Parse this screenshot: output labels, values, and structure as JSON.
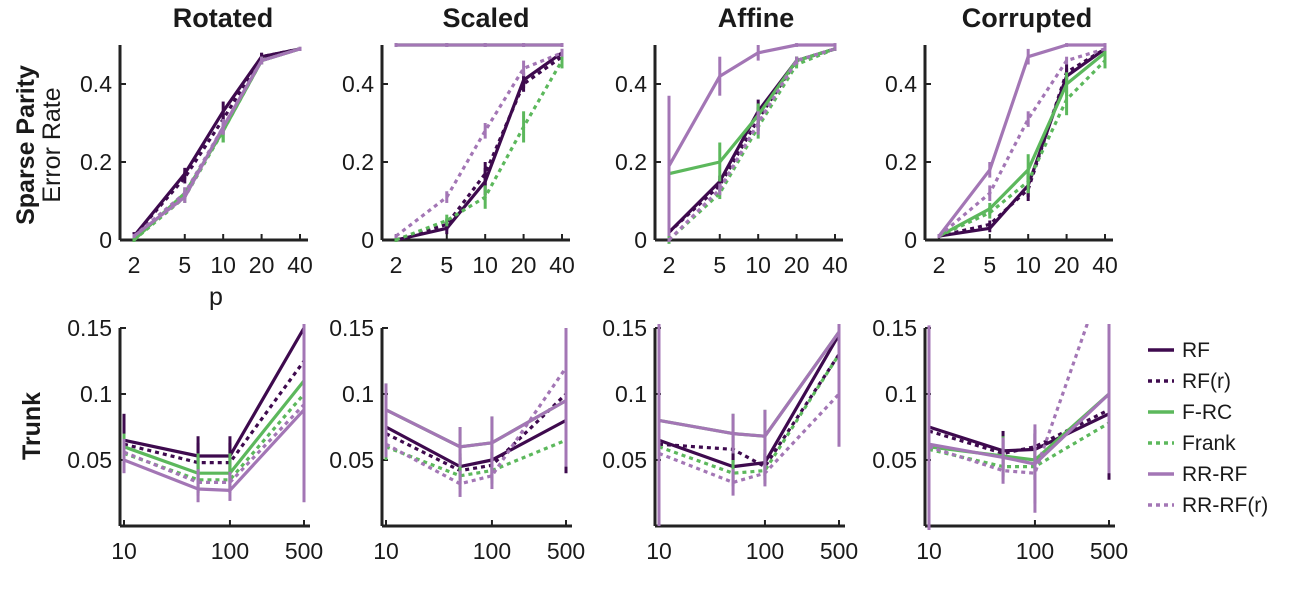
{
  "colors": {
    "RF": "#3e0a4e",
    "F-RC": "#5cb85c",
    "RR-RF": "#a376b5"
  },
  "legend": [
    {
      "name": "RF",
      "color": "RF",
      "dashed": false
    },
    {
      "name": "RF(r)",
      "color": "RF",
      "dashed": true
    },
    {
      "name": "F-RC",
      "color": "F-RC",
      "dashed": false
    },
    {
      "name": "Frank",
      "color": "F-RC",
      "dashed": true
    },
    {
      "name": "RR-RF",
      "color": "RR-RF",
      "dashed": false
    },
    {
      "name": "RR-RF(r)",
      "color": "RR-RF",
      "dashed": true
    }
  ],
  "column_titles": [
    "Rotated",
    "Scaled",
    "Affine",
    "Corrupted"
  ],
  "row_labels": {
    "sparse": "Sparse Parity",
    "trunk": "Trunk"
  },
  "ylabel_top": "Error Rate",
  "xlabel_top": "p",
  "chart_data": [
    {
      "type": "line",
      "row": "sparse",
      "panel": "Rotated",
      "xscale": "log",
      "x": [
        2,
        5,
        10,
        20,
        40
      ],
      "xticks": [
        2,
        5,
        10,
        20,
        40
      ],
      "ylim": [
        0,
        0.5
      ],
      "yticks": [
        0,
        0.2,
        0.4
      ],
      "ytick_labels": [
        "0",
        "0.2",
        "0.4"
      ],
      "series": [
        {
          "name": "RF",
          "dashed": false,
          "y": [
            0.01,
            0.17,
            0.33,
            0.47,
            0.49
          ],
          "err": [
            0.01,
            0.015,
            0.025,
            0.01,
            0.005
          ]
        },
        {
          "name": "RF(r)",
          "dashed": true,
          "y": [
            0.01,
            0.16,
            0.31,
            0.47,
            0.49
          ],
          "err": [
            0.01,
            0.015,
            0.02,
            0.01,
            0.005
          ]
        },
        {
          "name": "F-RC",
          "dashed": false,
          "y": [
            0.0,
            0.12,
            0.28,
            0.46,
            0.49
          ],
          "err": [
            0.005,
            0.015,
            0.03,
            0.01,
            0.005
          ]
        },
        {
          "name": "Frank",
          "dashed": true,
          "y": [
            0.0,
            0.11,
            0.28,
            0.46,
            0.49
          ],
          "err": [
            0.005,
            0.015,
            0.03,
            0.01,
            0.005
          ]
        },
        {
          "name": "RR-RF",
          "dashed": false,
          "y": [
            0.01,
            0.11,
            0.29,
            0.46,
            0.49
          ],
          "err": [
            0.005,
            0.015,
            0.02,
            0.01,
            0.005
          ]
        },
        {
          "name": "RR-RF(r)",
          "dashed": true,
          "y": [
            0.01,
            0.12,
            0.29,
            0.46,
            0.49
          ],
          "err": [
            0.005,
            0.015,
            0.02,
            0.01,
            0.005
          ]
        }
      ]
    },
    {
      "type": "line",
      "row": "sparse",
      "panel": "Scaled",
      "xscale": "log",
      "x": [
        2,
        5,
        10,
        20,
        40
      ],
      "xticks": [
        2,
        5,
        10,
        20,
        40
      ],
      "ylim": [
        0,
        0.5
      ],
      "yticks": [
        0,
        0.2,
        0.4
      ],
      "ytick_labels": [
        "0",
        "0.2",
        "0.4"
      ],
      "series": [
        {
          "name": "RF",
          "dashed": false,
          "y": [
            0.0,
            0.03,
            0.15,
            0.41,
            0.48
          ],
          "err": [
            0.005,
            0.015,
            0.035,
            0.02,
            0.01
          ]
        },
        {
          "name": "RF(r)",
          "dashed": true,
          "y": [
            0.0,
            0.04,
            0.17,
            0.4,
            0.47
          ],
          "err": [
            0.005,
            0.015,
            0.03,
            0.02,
            0.01
          ]
        },
        {
          "name": "F-RC",
          "dashed": false,
          "y": [
            0.5,
            0.5,
            0.5,
            0.5,
            0.5
          ],
          "err": [
            0.005,
            0.005,
            0.005,
            0.005,
            0.005
          ]
        },
        {
          "name": "Frank",
          "dashed": true,
          "y": [
            0.0,
            0.05,
            0.11,
            0.29,
            0.46
          ],
          "err": [
            0.005,
            0.015,
            0.03,
            0.04,
            0.02
          ]
        },
        {
          "name": "RR-RF",
          "dashed": false,
          "y": [
            0.5,
            0.5,
            0.5,
            0.5,
            0.5
          ],
          "err": [
            0.005,
            0.005,
            0.005,
            0.005,
            0.005
          ]
        },
        {
          "name": "RR-RF(r)",
          "dashed": true,
          "y": [
            0.01,
            0.11,
            0.28,
            0.44,
            0.48
          ],
          "err": [
            0.005,
            0.015,
            0.02,
            0.02,
            0.01
          ]
        }
      ]
    },
    {
      "type": "line",
      "row": "sparse",
      "panel": "Affine",
      "xscale": "log",
      "x": [
        2,
        5,
        10,
        20,
        40
      ],
      "xticks": [
        2,
        5,
        10,
        20,
        40
      ],
      "ylim": [
        0,
        0.5
      ],
      "yticks": [
        0,
        0.2,
        0.4
      ],
      "ytick_labels": [
        "0",
        "0.2",
        "0.4"
      ],
      "series": [
        {
          "name": "RF",
          "dashed": false,
          "y": [
            0.02,
            0.15,
            0.33,
            0.46,
            0.49
          ],
          "err": [
            0.01,
            0.015,
            0.03,
            0.01,
            0.005
          ]
        },
        {
          "name": "RF(r)",
          "dashed": true,
          "y": [
            0.02,
            0.14,
            0.31,
            0.46,
            0.49
          ],
          "err": [
            0.01,
            0.015,
            0.03,
            0.01,
            0.005
          ]
        },
        {
          "name": "F-RC",
          "dashed": false,
          "y": [
            0.17,
            0.2,
            0.32,
            0.46,
            0.49
          ],
          "err": [
            0.18,
            0.05,
            0.03,
            0.01,
            0.005
          ]
        },
        {
          "name": "Frank",
          "dashed": true,
          "y": [
            0.0,
            0.12,
            0.29,
            0.45,
            0.49
          ],
          "err": [
            0.005,
            0.015,
            0.03,
            0.01,
            0.005
          ]
        },
        {
          "name": "RR-RF",
          "dashed": false,
          "y": [
            0.19,
            0.42,
            0.48,
            0.5,
            0.5
          ],
          "err": [
            0.18,
            0.05,
            0.02,
            0.005,
            0.005
          ]
        },
        {
          "name": "RR-RF(r)",
          "dashed": true,
          "y": [
            0.0,
            0.13,
            0.3,
            0.46,
            0.49
          ],
          "err": [
            0.005,
            0.015,
            0.03,
            0.01,
            0.005
          ]
        }
      ]
    },
    {
      "type": "line",
      "row": "sparse",
      "panel": "Corrupted",
      "xscale": "log",
      "x": [
        2,
        5,
        10,
        20,
        40
      ],
      "xticks": [
        2,
        5,
        10,
        20,
        40
      ],
      "ylim": [
        0,
        0.5
      ],
      "yticks": [
        0,
        0.2,
        0.4
      ],
      "ytick_labels": [
        "0",
        "0.2",
        "0.4"
      ],
      "series": [
        {
          "name": "RF",
          "dashed": false,
          "y": [
            0.01,
            0.03,
            0.14,
            0.42,
            0.49
          ],
          "err": [
            0.005,
            0.01,
            0.03,
            0.02,
            0.01
          ]
        },
        {
          "name": "RF(r)",
          "dashed": true,
          "y": [
            0.01,
            0.04,
            0.13,
            0.43,
            0.49
          ],
          "err": [
            0.005,
            0.01,
            0.03,
            0.02,
            0.01
          ]
        },
        {
          "name": "F-RC",
          "dashed": false,
          "y": [
            0.01,
            0.08,
            0.18,
            0.4,
            0.48
          ],
          "err": [
            0.005,
            0.015,
            0.04,
            0.03,
            0.01
          ]
        },
        {
          "name": "Frank",
          "dashed": true,
          "y": [
            0.01,
            0.07,
            0.15,
            0.36,
            0.46
          ],
          "err": [
            0.005,
            0.015,
            0.03,
            0.04,
            0.02
          ]
        },
        {
          "name": "RR-RF",
          "dashed": false,
          "y": [
            0.01,
            0.18,
            0.47,
            0.5,
            0.5
          ],
          "err": [
            0.005,
            0.02,
            0.02,
            0.005,
            0.005
          ]
        },
        {
          "name": "RR-RF(r)",
          "dashed": true,
          "y": [
            0.01,
            0.12,
            0.31,
            0.46,
            0.49
          ],
          "err": [
            0.005,
            0.02,
            0.02,
            0.01,
            0.005
          ]
        }
      ]
    },
    {
      "type": "line",
      "row": "trunk",
      "panel": "Rotated",
      "xscale": "log",
      "x": [
        10,
        50,
        100,
        500
      ],
      "xticks": [
        10,
        100,
        500
      ],
      "ylim": [
        0,
        0.15
      ],
      "yticks": [
        0.05,
        0.1,
        0.15
      ],
      "ytick_labels": [
        "0.05",
        "0.1",
        "0.15"
      ],
      "series": [
        {
          "name": "RF",
          "dashed": false,
          "y": [
            0.065,
            0.053,
            0.053,
            0.15
          ],
          "err": [
            0.02,
            0.015,
            0.015,
            0.01
          ]
        },
        {
          "name": "RF(r)",
          "dashed": true,
          "y": [
            0.062,
            0.048,
            0.048,
            0.125
          ],
          "err": [
            0.015,
            0.015,
            0.015,
            0.01
          ]
        },
        {
          "name": "F-RC",
          "dashed": false,
          "y": [
            0.06,
            0.04,
            0.04,
            0.11
          ],
          "err": [
            0.01,
            0.015,
            0.015,
            0.04
          ]
        },
        {
          "name": "Frank",
          "dashed": true,
          "y": [
            0.055,
            0.035,
            0.035,
            0.1
          ],
          "err": [
            0.01,
            0.01,
            0.01,
            0.03
          ]
        },
        {
          "name": "RR-RF",
          "dashed": false,
          "y": [
            0.05,
            0.028,
            0.027,
            0.088
          ],
          "err": [
            0.01,
            0.01,
            0.008,
            0.07
          ]
        },
        {
          "name": "RR-RF(r)",
          "dashed": true,
          "y": [
            0.056,
            0.033,
            0.033,
            0.092
          ],
          "err": [
            0.01,
            0.01,
            0.008,
            0.06
          ]
        }
      ]
    },
    {
      "type": "line",
      "row": "trunk",
      "panel": "Scaled",
      "xscale": "log",
      "x": [
        10,
        50,
        100,
        500
      ],
      "xticks": [
        10,
        100,
        500
      ],
      "ylim": [
        0,
        0.15
      ],
      "yticks": [
        0.05,
        0.1,
        0.15
      ],
      "ytick_labels": [
        "0.05",
        "0.1",
        "0.15"
      ],
      "series": [
        {
          "name": "RF",
          "dashed": false,
          "y": [
            0.075,
            0.045,
            0.05,
            0.08
          ],
          "err": [
            0.015,
            0.01,
            0.015,
            0.04
          ]
        },
        {
          "name": "RF(r)",
          "dashed": true,
          "y": [
            0.07,
            0.042,
            0.046,
            0.1
          ],
          "err": [
            0.015,
            0.01,
            0.01,
            0.03
          ]
        },
        {
          "name": "F-RC",
          "dashed": false,
          "y": [
            0.088,
            0.06,
            0.063,
            0.095
          ],
          "err": [
            0.02,
            0.015,
            0.02,
            0.03
          ]
        },
        {
          "name": "Frank",
          "dashed": true,
          "y": [
            0.06,
            0.038,
            0.042,
            0.065
          ],
          "err": [
            0.01,
            0.01,
            0.01,
            0.02
          ]
        },
        {
          "name": "RR-RF",
          "dashed": false,
          "y": [
            0.088,
            0.06,
            0.063,
            0.095
          ],
          "err": [
            0.02,
            0.015,
            0.02,
            0.05
          ]
        },
        {
          "name": "RR-RF(r)",
          "dashed": true,
          "y": [
            0.062,
            0.032,
            0.038,
            0.12
          ],
          "err": [
            0.01,
            0.01,
            0.01,
            0.03
          ]
        }
      ]
    },
    {
      "type": "line",
      "row": "trunk",
      "panel": "Affine",
      "xscale": "log",
      "x": [
        10,
        50,
        100,
        500
      ],
      "xticks": [
        10,
        100,
        500
      ],
      "ylim": [
        0,
        0.15
      ],
      "yticks": [
        0.05,
        0.1,
        0.15
      ],
      "ytick_labels": [
        "0.05",
        "0.1",
        "0.15"
      ],
      "series": [
        {
          "name": "RF",
          "dashed": false,
          "y": [
            0.065,
            0.045,
            0.048,
            0.145
          ],
          "err": [
            0.01,
            0.01,
            0.01,
            0.07
          ]
        },
        {
          "name": "RF(r)",
          "dashed": true,
          "y": [
            0.062,
            0.058,
            0.045,
            0.13
          ],
          "err": [
            0.01,
            0.01,
            0.01,
            0.01
          ]
        },
        {
          "name": "F-RC",
          "dashed": false,
          "y": [
            0.08,
            0.07,
            0.068,
            0.147
          ],
          "err": [
            0.015,
            0.015,
            0.02,
            0.01
          ]
        },
        {
          "name": "Frank",
          "dashed": true,
          "y": [
            0.06,
            0.04,
            0.042,
            0.13
          ],
          "err": [
            0.01,
            0.01,
            0.01,
            0.01
          ]
        },
        {
          "name": "RR-RF",
          "dashed": false,
          "y": [
            0.08,
            0.07,
            0.068,
            0.147
          ],
          "err": [
            0.08,
            0.015,
            0.02,
            0.01
          ]
        },
        {
          "name": "RR-RF(r)",
          "dashed": true,
          "y": [
            0.055,
            0.033,
            0.04,
            0.1
          ],
          "err": [
            0.01,
            0.01,
            0.01,
            0.04
          ]
        }
      ]
    },
    {
      "type": "line",
      "row": "trunk",
      "panel": "Corrupted",
      "xscale": "log",
      "x": [
        10,
        50,
        100,
        500
      ],
      "xticks": [
        10,
        100,
        500
      ],
      "ylim": [
        0,
        0.15
      ],
      "yticks": [
        0.05,
        0.1,
        0.15
      ],
      "ytick_labels": [
        "0.05",
        "0.1",
        "0.15"
      ],
      "series": [
        {
          "name": "RF",
          "dashed": false,
          "y": [
            0.075,
            0.057,
            0.058,
            0.085
          ],
          "err": [
            0.02,
            0.015,
            0.015,
            0.05
          ]
        },
        {
          "name": "RF(r)",
          "dashed": true,
          "y": [
            0.072,
            0.055,
            0.06,
            0.088
          ],
          "err": [
            0.015,
            0.01,
            0.01,
            0.04
          ]
        },
        {
          "name": "F-RC",
          "dashed": false,
          "y": [
            0.06,
            0.053,
            0.05,
            0.1
          ],
          "err": [
            0.015,
            0.015,
            0.015,
            0.035
          ]
        },
        {
          "name": "Frank",
          "dashed": true,
          "y": [
            0.058,
            0.045,
            0.045,
            0.078
          ],
          "err": [
            0.01,
            0.01,
            0.01,
            0.02
          ]
        },
        {
          "name": "RR-RF",
          "dashed": false,
          "y": [
            0.062,
            0.052,
            0.047,
            0.1
          ],
          "err": [
            0.09,
            0.015,
            0.03,
            0.06
          ]
        },
        {
          "name": "RR-RF(r)",
          "dashed": true,
          "y": [
            0.06,
            0.042,
            0.04,
            0.2
          ],
          "err": [
            0.01,
            0.01,
            0.03,
            0.03
          ]
        }
      ]
    }
  ]
}
